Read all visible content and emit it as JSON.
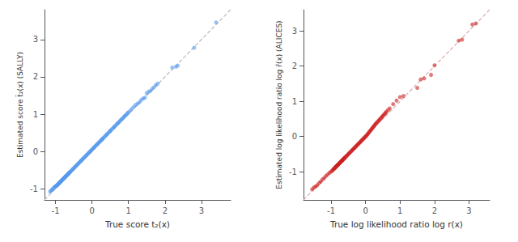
{
  "chart_data": [
    {
      "type": "scatter",
      "xlabel": "True score t₂(x)",
      "ylabel": "Estimated score t̂₂(x) (SALLY)",
      "xlim": [
        -1.3,
        3.8
      ],
      "ylim": [
        -1.3,
        3.8
      ],
      "xticks": [
        -1,
        0,
        1,
        2,
        3
      ],
      "yticks": [
        -1,
        0,
        1,
        2,
        3
      ],
      "grid": false,
      "series": [
        {
          "type": "line",
          "line_style": "dashed",
          "color": "#bbbbbb",
          "x": [
            -1.3,
            3.8
          ],
          "values": [
            -1.3,
            3.8
          ]
        },
        {
          "type": "scatter",
          "marker": "circle",
          "color": "#5599ee",
          "x": [
            -1.15,
            -1.12,
            -1.1,
            -1.08,
            -1.05,
            -1.03,
            -1.02,
            -1.0,
            -0.98,
            -0.97,
            -0.96,
            -0.95,
            -0.94,
            -0.93,
            -0.92,
            -0.91,
            -0.9,
            -0.89,
            -0.88,
            -0.87,
            -0.86,
            -0.85,
            -0.84,
            -0.83,
            -0.82,
            -0.81,
            -0.8,
            -0.79,
            -0.78,
            -0.77,
            -0.76,
            -0.75,
            -0.74,
            -0.73,
            -0.72,
            -0.71,
            -0.7,
            -0.69,
            -0.68,
            -0.67,
            -0.66,
            -0.65,
            -0.64,
            -0.63,
            -0.62,
            -0.61,
            -0.6,
            -0.58,
            -0.56,
            -0.54,
            -0.52,
            -0.5,
            -0.48,
            -0.46,
            -0.44,
            -0.42,
            -0.4,
            -0.38,
            -0.36,
            -0.34,
            -0.32,
            -0.3,
            -0.28,
            -0.26,
            -0.24,
            -0.22,
            -0.2,
            -0.18,
            -0.16,
            -0.14,
            -0.12,
            -0.1,
            -0.08,
            -0.06,
            -0.04,
            -0.02,
            0.0,
            0.02,
            0.04,
            0.06,
            0.08,
            0.1,
            0.12,
            0.14,
            0.16,
            0.18,
            0.2,
            0.22,
            0.24,
            0.26,
            0.28,
            0.3,
            0.32,
            0.35,
            0.38,
            0.4,
            0.42,
            0.45,
            0.48,
            0.5,
            0.52,
            0.55,
            0.58,
            0.6,
            0.62,
            0.65,
            0.68,
            0.7,
            0.72,
            0.75,
            0.78,
            0.8,
            0.82,
            0.85,
            0.88,
            0.9,
            0.92,
            0.95,
            0.98,
            1.0,
            1.05,
            1.1,
            1.15,
            1.2,
            1.25,
            1.3,
            1.35,
            1.4,
            1.45,
            1.5,
            1.55,
            1.6,
            1.65,
            1.7,
            1.75,
            1.8,
            2.2,
            2.3,
            2.35,
            2.8,
            3.4
          ],
          "values": [
            -1.08,
            -1.05,
            -1.03,
            -1.01,
            -0.98,
            -0.96,
            -0.95,
            -0.94,
            -0.93,
            -0.92,
            -0.91,
            -0.9,
            -0.89,
            -0.88,
            -0.87,
            -0.86,
            -0.85,
            -0.84,
            -0.83,
            -0.82,
            -0.81,
            -0.8,
            -0.79,
            -0.78,
            -0.77,
            -0.76,
            -0.75,
            -0.74,
            -0.73,
            -0.72,
            -0.71,
            -0.7,
            -0.69,
            -0.68,
            -0.67,
            -0.66,
            -0.65,
            -0.64,
            -0.63,
            -0.62,
            -0.61,
            -0.6,
            -0.59,
            -0.58,
            -0.57,
            -0.56,
            -0.55,
            -0.53,
            -0.51,
            -0.49,
            -0.47,
            -0.45,
            -0.43,
            -0.41,
            -0.39,
            -0.37,
            -0.35,
            -0.33,
            -0.31,
            -0.29,
            -0.27,
            -0.25,
            -0.23,
            -0.21,
            -0.19,
            -0.17,
            -0.15,
            -0.13,
            -0.11,
            -0.09,
            -0.07,
            -0.05,
            -0.03,
            -0.01,
            0.01,
            0.03,
            0.05,
            0.07,
            0.09,
            0.11,
            0.13,
            0.15,
            0.17,
            0.19,
            0.21,
            0.23,
            0.25,
            0.27,
            0.29,
            0.31,
            0.33,
            0.35,
            0.37,
            0.4,
            0.43,
            0.45,
            0.47,
            0.5,
            0.53,
            0.55,
            0.57,
            0.6,
            0.63,
            0.65,
            0.67,
            0.7,
            0.73,
            0.75,
            0.77,
            0.8,
            0.83,
            0.85,
            0.87,
            0.9,
            0.93,
            0.95,
            0.97,
            1.0,
            1.03,
            1.05,
            1.1,
            1.15,
            1.2,
            1.25,
            1.28,
            1.32,
            1.38,
            1.42,
            1.44,
            1.56,
            1.6,
            1.62,
            1.68,
            1.72,
            1.78,
            1.82,
            2.25,
            2.27,
            2.3,
            2.78,
            3.46
          ]
        }
      ]
    },
    {
      "type": "scatter",
      "xlabel": "True log likelihood ratio log r(x)",
      "ylabel": "Estimated log likelihood ratio log r̂(x) (ALICES)",
      "xlim": [
        -1.8,
        3.6
      ],
      "ylim": [
        -1.8,
        3.6
      ],
      "xticks": [
        -1,
        0,
        1,
        2,
        3
      ],
      "yticks": [
        -1,
        0,
        1,
        2,
        3
      ],
      "grid": false,
      "series": [
        {
          "type": "line",
          "line_style": "dashed",
          "color": "#ddaaaa",
          "x": [
            -1.8,
            3.6
          ],
          "values": [
            -1.8,
            3.6
          ]
        },
        {
          "type": "scatter",
          "marker": "circle",
          "color": "#cc2222",
          "x": [
            -1.55,
            -1.5,
            -1.45,
            -1.4,
            -1.35,
            -1.3,
            -1.25,
            -1.2,
            -1.15,
            -1.1,
            -1.05,
            -1.0,
            -0.97,
            -0.95,
            -0.93,
            -0.91,
            -0.9,
            -0.89,
            -0.88,
            -0.87,
            -0.86,
            -0.85,
            -0.84,
            -0.83,
            -0.82,
            -0.81,
            -0.8,
            -0.79,
            -0.78,
            -0.77,
            -0.76,
            -0.75,
            -0.74,
            -0.73,
            -0.72,
            -0.71,
            -0.7,
            -0.69,
            -0.68,
            -0.67,
            -0.66,
            -0.65,
            -0.64,
            -0.63,
            -0.62,
            -0.61,
            -0.6,
            -0.58,
            -0.56,
            -0.54,
            -0.52,
            -0.5,
            -0.48,
            -0.46,
            -0.44,
            -0.42,
            -0.4,
            -0.38,
            -0.36,
            -0.34,
            -0.32,
            -0.3,
            -0.28,
            -0.26,
            -0.24,
            -0.22,
            -0.2,
            -0.18,
            -0.16,
            -0.14,
            -0.12,
            -0.1,
            -0.08,
            -0.06,
            -0.04,
            -0.02,
            0.0,
            0.02,
            0.04,
            0.06,
            0.08,
            0.1,
            0.12,
            0.14,
            0.16,
            0.18,
            0.2,
            0.22,
            0.24,
            0.26,
            0.28,
            0.3,
            0.32,
            0.35,
            0.38,
            0.4,
            0.42,
            0.45,
            0.48,
            0.5,
            0.52,
            0.55,
            0.58,
            0.6,
            0.65,
            0.7,
            0.8,
            0.9,
            1.0,
            1.1,
            1.5,
            1.6,
            1.7,
            1.9,
            2.0,
            2.7,
            2.8,
            3.1,
            3.2
          ],
          "values": [
            -1.5,
            -1.45,
            -1.42,
            -1.38,
            -1.32,
            -1.28,
            -1.22,
            -1.18,
            -1.12,
            -1.08,
            -1.03,
            -1.0,
            -0.97,
            -0.95,
            -0.93,
            -0.91,
            -0.9,
            -0.89,
            -0.88,
            -0.87,
            -0.86,
            -0.85,
            -0.84,
            -0.83,
            -0.82,
            -0.81,
            -0.8,
            -0.79,
            -0.78,
            -0.77,
            -0.76,
            -0.75,
            -0.74,
            -0.73,
            -0.72,
            -0.71,
            -0.7,
            -0.69,
            -0.68,
            -0.67,
            -0.66,
            -0.65,
            -0.64,
            -0.63,
            -0.62,
            -0.61,
            -0.6,
            -0.58,
            -0.56,
            -0.54,
            -0.52,
            -0.5,
            -0.48,
            -0.46,
            -0.44,
            -0.42,
            -0.4,
            -0.38,
            -0.36,
            -0.34,
            -0.32,
            -0.3,
            -0.28,
            -0.26,
            -0.24,
            -0.22,
            -0.2,
            -0.18,
            -0.16,
            -0.14,
            -0.12,
            -0.1,
            -0.08,
            -0.06,
            -0.04,
            -0.02,
            0.0,
            0.02,
            0.04,
            0.07,
            0.09,
            0.12,
            0.14,
            0.17,
            0.19,
            0.22,
            0.24,
            0.27,
            0.29,
            0.32,
            0.34,
            0.37,
            0.39,
            0.42,
            0.45,
            0.47,
            0.5,
            0.53,
            0.56,
            0.58,
            0.61,
            0.64,
            0.67,
            0.7,
            0.75,
            0.8,
            0.92,
            1.02,
            1.12,
            1.15,
            1.38,
            1.62,
            1.65,
            1.75,
            2.02,
            2.72,
            2.75,
            3.18,
            3.21
          ]
        }
      ]
    }
  ]
}
